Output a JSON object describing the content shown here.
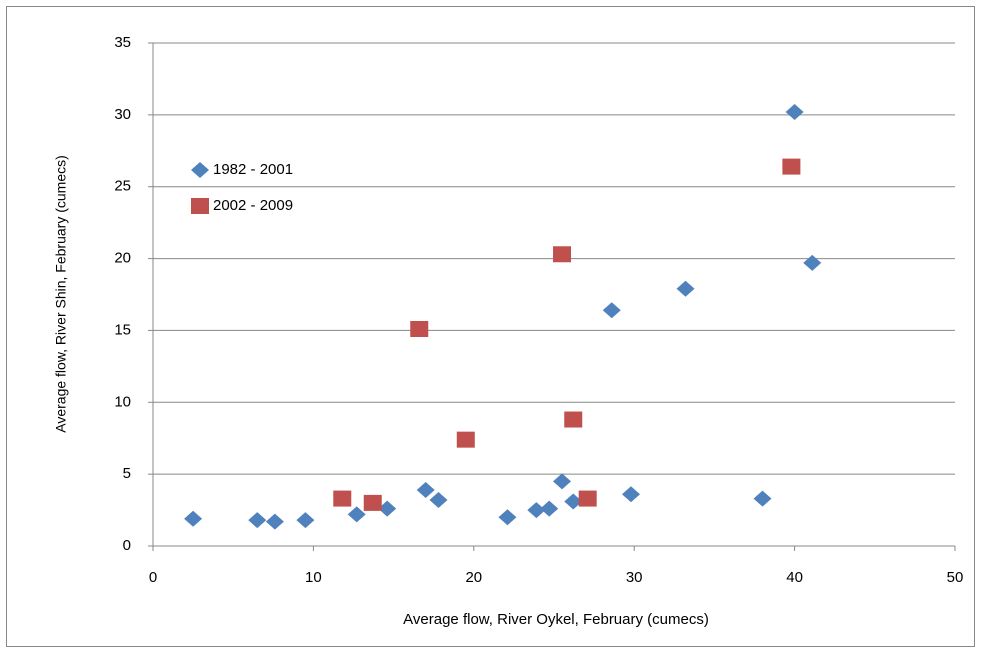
{
  "chart_data": {
    "type": "scatter",
    "x_label": "Average flow, River Oykel, February (cumecs)",
    "y_label": "Average flow, River Shin, February (cumecs)",
    "xlim": [
      0,
      50
    ],
    "xticks": [
      0,
      10,
      20,
      30,
      40,
      50
    ],
    "ylim": [
      0,
      35
    ],
    "yticks": [
      0,
      5,
      10,
      15,
      20,
      25,
      30,
      35
    ],
    "grid": true,
    "legend": "upper-left",
    "series": [
      {
        "name": "1982 - 2001",
        "color": "#4f81bd",
        "marker": "diamond",
        "x": [
          2.5,
          6.5,
          7.6,
          9.5,
          12.7,
          14.6,
          17.0,
          17.8,
          22.1,
          23.9,
          24.7,
          25.5,
          26.2,
          28.6,
          29.8,
          33.2,
          38.0,
          40.0,
          41.1
        ],
        "values": [
          1.9,
          1.8,
          1.7,
          1.8,
          2.2,
          2.6,
          3.9,
          3.2,
          2.0,
          2.5,
          2.6,
          4.5,
          3.1,
          16.4,
          3.6,
          17.9,
          3.3,
          30.2,
          19.7
        ]
      },
      {
        "name": "2002 - 2009",
        "color": "#c0504d",
        "marker": "square",
        "x": [
          11.8,
          13.7,
          16.6,
          19.5,
          25.5,
          26.2,
          27.1,
          39.8
        ],
        "values": [
          3.3,
          3.0,
          15.1,
          7.4,
          20.3,
          8.8,
          3.3,
          26.4
        ]
      }
    ]
  }
}
